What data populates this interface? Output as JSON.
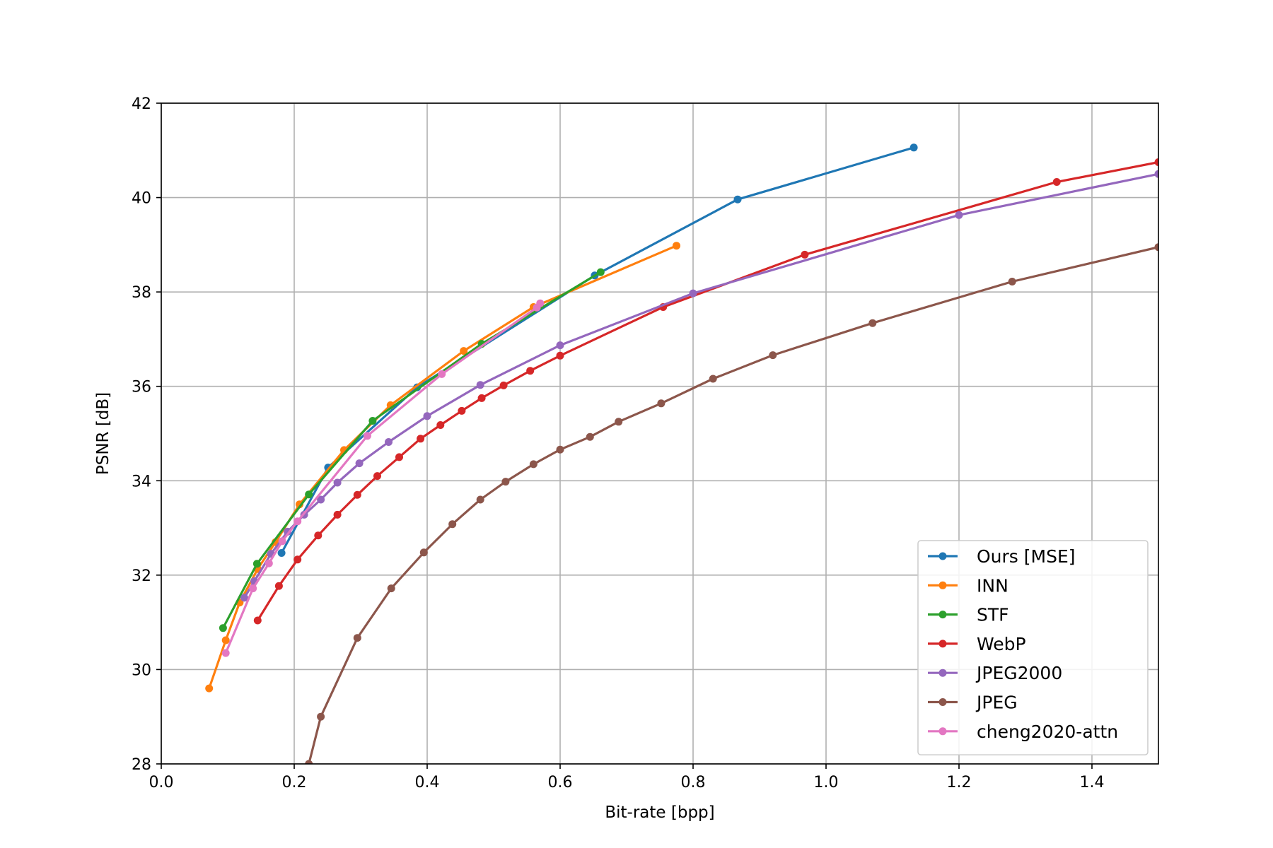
{
  "chart_data": {
    "type": "line",
    "xlabel": "Bit-rate [bpp]",
    "ylabel": "PSNR [dB]",
    "xlim": [
      0.0,
      1.5
    ],
    "ylim": [
      28,
      42
    ],
    "xticks": [
      "0.0",
      "0.2",
      "0.4",
      "0.6",
      "0.8",
      "1.0",
      "1.2",
      "1.4"
    ],
    "yticks": [
      "28",
      "30",
      "32",
      "34",
      "36",
      "38",
      "40",
      "42"
    ],
    "grid": true,
    "legend_position": "lower-right",
    "series": [
      {
        "name": "Ours [MSE]",
        "color": "#1f77b4",
        "x": [
          0.181,
          0.251,
          0.385,
          0.652,
          0.867,
          1.132
        ],
        "y": [
          32.47,
          34.28,
          35.98,
          38.35,
          39.96,
          41.06
        ]
      },
      {
        "name": "INN",
        "color": "#ff7f0e",
        "x": [
          0.072,
          0.097,
          0.118,
          0.145,
          0.172,
          0.208,
          0.275,
          0.345,
          0.455,
          0.56,
          0.775
        ],
        "y": [
          29.6,
          30.62,
          31.42,
          32.13,
          32.7,
          33.5,
          34.65,
          35.6,
          36.75,
          37.68,
          38.98
        ]
      },
      {
        "name": "STF",
        "color": "#2ca02c",
        "x": [
          0.093,
          0.144,
          0.222,
          0.318,
          0.482,
          0.661
        ],
        "y": [
          30.88,
          32.24,
          33.71,
          35.27,
          36.9,
          38.42
        ]
      },
      {
        "name": "WebP",
        "color": "#d62728",
        "x": [
          0.145,
          0.177,
          0.205,
          0.236,
          0.265,
          0.295,
          0.325,
          0.358,
          0.39,
          0.42,
          0.452,
          0.482,
          0.515,
          0.555,
          0.6,
          0.755,
          0.968,
          1.347,
          1.5
        ],
        "y": [
          31.04,
          31.77,
          32.33,
          32.84,
          33.28,
          33.7,
          34.1,
          34.5,
          34.89,
          35.18,
          35.48,
          35.75,
          36.02,
          36.33,
          36.65,
          37.68,
          38.79,
          40.33,
          40.75
        ]
      },
      {
        "name": "JPEG2000",
        "color": "#9467bd",
        "x": [
          0.125,
          0.14,
          0.165,
          0.19,
          0.215,
          0.24,
          0.265,
          0.298,
          0.342,
          0.4,
          0.48,
          0.6,
          0.8,
          1.2,
          1.5
        ],
        "y": [
          31.52,
          31.87,
          32.45,
          32.92,
          33.28,
          33.6,
          33.96,
          34.37,
          34.82,
          35.37,
          36.03,
          36.87,
          37.97,
          39.63,
          40.5
        ]
      },
      {
        "name": "JPEG",
        "color": "#8c564b",
        "x": [
          0.222,
          0.24,
          0.295,
          0.346,
          0.395,
          0.438,
          0.48,
          0.518,
          0.56,
          0.6,
          0.645,
          0.688,
          0.752,
          0.83,
          0.92,
          1.07,
          1.28,
          1.5
        ],
        "y": [
          28.0,
          29.0,
          30.67,
          31.72,
          32.48,
          33.08,
          33.6,
          33.98,
          34.35,
          34.66,
          34.93,
          35.25,
          35.64,
          36.16,
          36.66,
          37.34,
          38.22,
          38.95
        ]
      },
      {
        "name": "cheng2020-attn",
        "color": "#e377c2",
        "x": [
          0.097,
          0.138,
          0.162,
          0.182,
          0.205,
          0.31,
          0.422,
          0.565,
          0.57
        ],
        "y": [
          30.35,
          31.72,
          32.25,
          32.72,
          33.14,
          34.95,
          36.26,
          37.67,
          37.76
        ]
      }
    ]
  }
}
